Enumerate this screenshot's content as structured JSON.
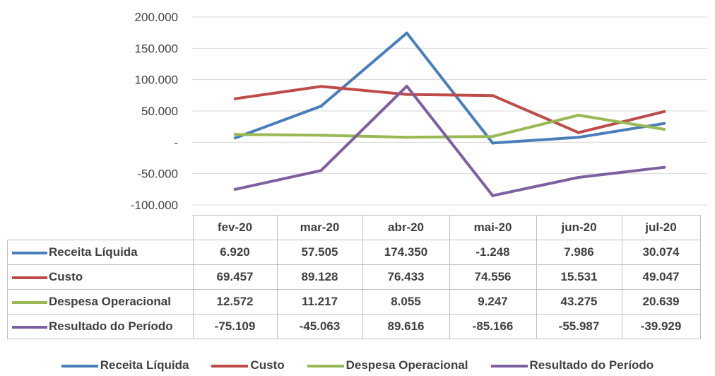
{
  "chart_data": {
    "type": "line",
    "categories": [
      "fev-20",
      "mar-20",
      "abr-20",
      "mai-20",
      "jun-20",
      "jul-20"
    ],
    "ylim": [
      -100000,
      200000
    ],
    "yticks": [
      {
        "value": 200000,
        "label": "200.000"
      },
      {
        "value": 150000,
        "label": "150.000"
      },
      {
        "value": 100000,
        "label": "100.000"
      },
      {
        "value": 50000,
        "label": "50.000"
      },
      {
        "value": 0,
        "label": "-"
      },
      {
        "value": -50000,
        "label": "-50.000"
      },
      {
        "value": -100000,
        "label": "-100.000"
      }
    ],
    "grid": true,
    "legend": "bottom",
    "series": [
      {
        "name": "Receita Líquida",
        "color": "#4A7EBB",
        "values": [
          6920,
          57505,
          174350,
          -1248,
          7986,
          30074
        ],
        "labels": [
          "6.920",
          "57.505",
          "174.350",
          "-1.248",
          "7.986",
          "30.074"
        ]
      },
      {
        "name": "Custo",
        "color": "#BE4B48",
        "values": [
          69457,
          89128,
          76433,
          74556,
          15531,
          49047
        ],
        "labels": [
          "69.457",
          "89.128",
          "76.433",
          "74.556",
          "15.531",
          "49.047"
        ]
      },
      {
        "name": "Despesa Operacional",
        "color": "#98B954",
        "values": [
          12572,
          11217,
          8055,
          9247,
          43275,
          20639
        ],
        "labels": [
          "12.572",
          "11.217",
          "8.055",
          "9.247",
          "43.275",
          "20.639"
        ]
      },
      {
        "name": "Resultado do Período",
        "color": "#7D5FA0",
        "values": [
          -75109,
          -45063,
          89616,
          -85166,
          -55987,
          -39929
        ],
        "labels": [
          "-75.109",
          "-45.063",
          "89.616",
          "-85.166",
          "-55.987",
          "-39.929"
        ]
      }
    ]
  }
}
